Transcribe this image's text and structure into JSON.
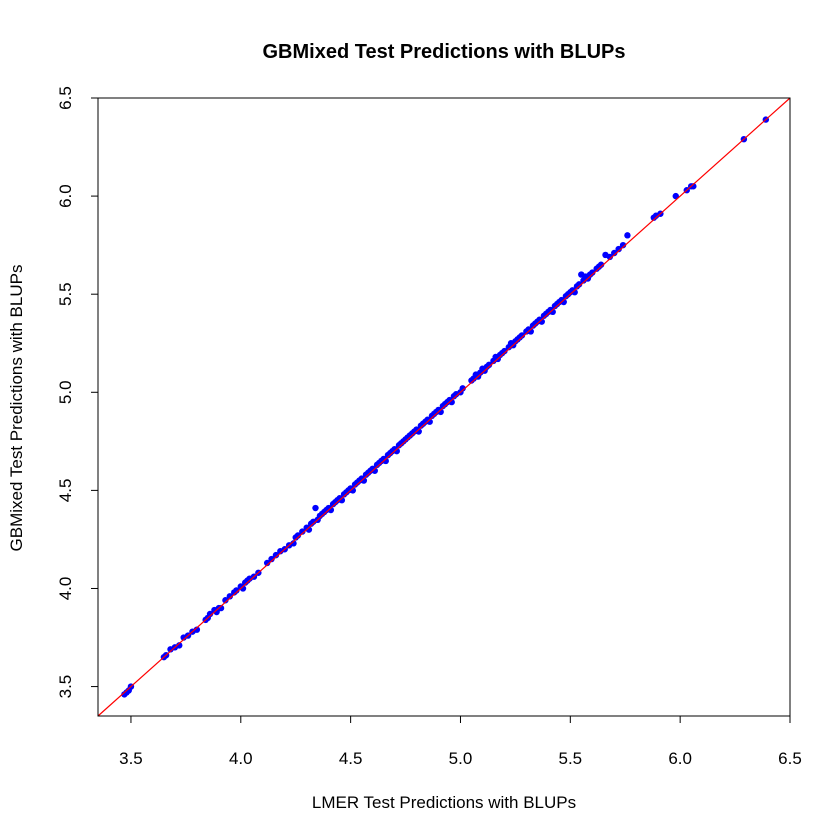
{
  "chart_data": {
    "type": "scatter",
    "title": "GBMixed Test Predictions with BLUPs",
    "xlabel": "LMER Test Predictions with BLUPs",
    "ylabel": "GBMixed Test Predictions with BLUPs",
    "xlim": [
      3.35,
      6.5
    ],
    "ylim": [
      3.35,
      6.5
    ],
    "xticks": [
      "3.5",
      "4.0",
      "4.5",
      "5.0",
      "5.5",
      "6.0",
      "6.5"
    ],
    "yticks": [
      "3.5",
      "4.0",
      "4.5",
      "5.0",
      "5.5",
      "6.0",
      "6.5"
    ],
    "grid": false,
    "point_color": "#0000ff",
    "reference_line": {
      "slope": 1,
      "intercept": 0,
      "color": "#ff0000"
    },
    "points": [
      [
        3.47,
        3.46
      ],
      [
        3.48,
        3.47
      ],
      [
        3.49,
        3.48
      ],
      [
        3.5,
        3.5
      ],
      [
        3.65,
        3.65
      ],
      [
        3.66,
        3.66
      ],
      [
        3.68,
        3.69
      ],
      [
        3.7,
        3.7
      ],
      [
        3.72,
        3.71
      ],
      [
        3.74,
        3.75
      ],
      [
        3.76,
        3.76
      ],
      [
        3.78,
        3.78
      ],
      [
        3.8,
        3.79
      ],
      [
        3.84,
        3.84
      ],
      [
        3.85,
        3.85
      ],
      [
        3.86,
        3.87
      ],
      [
        3.88,
        3.89
      ],
      [
        3.89,
        3.88
      ],
      [
        3.9,
        3.9
      ],
      [
        3.91,
        3.9
      ],
      [
        3.93,
        3.94
      ],
      [
        3.95,
        3.96
      ],
      [
        3.97,
        3.98
      ],
      [
        3.98,
        3.99
      ],
      [
        4.0,
        4.01
      ],
      [
        4.01,
        4.0
      ],
      [
        4.02,
        4.03
      ],
      [
        4.03,
        4.04
      ],
      [
        4.04,
        4.05
      ],
      [
        4.06,
        4.06
      ],
      [
        4.08,
        4.08
      ],
      [
        4.12,
        4.13
      ],
      [
        4.14,
        4.15
      ],
      [
        4.16,
        4.17
      ],
      [
        4.18,
        4.19
      ],
      [
        4.2,
        4.2
      ],
      [
        4.22,
        4.22
      ],
      [
        4.24,
        4.23
      ],
      [
        4.25,
        4.26
      ],
      [
        4.26,
        4.27
      ],
      [
        4.28,
        4.29
      ],
      [
        4.3,
        4.31
      ],
      [
        4.31,
        4.3
      ],
      [
        4.32,
        4.33
      ],
      [
        4.33,
        4.34
      ],
      [
        4.34,
        4.41
      ],
      [
        4.35,
        4.35
      ],
      [
        4.36,
        4.37
      ],
      [
        4.37,
        4.38
      ],
      [
        4.38,
        4.39
      ],
      [
        4.39,
        4.4
      ],
      [
        4.4,
        4.41
      ],
      [
        4.41,
        4.4
      ],
      [
        4.42,
        4.43
      ],
      [
        4.43,
        4.44
      ],
      [
        4.44,
        4.45
      ],
      [
        4.45,
        4.46
      ],
      [
        4.46,
        4.45
      ],
      [
        4.47,
        4.48
      ],
      [
        4.48,
        4.49
      ],
      [
        4.49,
        4.5
      ],
      [
        4.5,
        4.51
      ],
      [
        4.51,
        4.5
      ],
      [
        4.52,
        4.53
      ],
      [
        4.53,
        4.54
      ],
      [
        4.54,
        4.55
      ],
      [
        4.55,
        4.56
      ],
      [
        4.56,
        4.55
      ],
      [
        4.57,
        4.58
      ],
      [
        4.58,
        4.59
      ],
      [
        4.59,
        4.6
      ],
      [
        4.6,
        4.61
      ],
      [
        4.61,
        4.6
      ],
      [
        4.62,
        4.63
      ],
      [
        4.63,
        4.64
      ],
      [
        4.64,
        4.65
      ],
      [
        4.65,
        4.66
      ],
      [
        4.66,
        4.65
      ],
      [
        4.67,
        4.68
      ],
      [
        4.68,
        4.69
      ],
      [
        4.69,
        4.7
      ],
      [
        4.7,
        4.71
      ],
      [
        4.71,
        4.7
      ],
      [
        4.72,
        4.73
      ],
      [
        4.73,
        4.74
      ],
      [
        4.74,
        4.75
      ],
      [
        4.75,
        4.76
      ],
      [
        4.76,
        4.77
      ],
      [
        4.77,
        4.78
      ],
      [
        4.78,
        4.79
      ],
      [
        4.79,
        4.8
      ],
      [
        4.8,
        4.81
      ],
      [
        4.81,
        4.8
      ],
      [
        4.82,
        4.83
      ],
      [
        4.83,
        4.84
      ],
      [
        4.84,
        4.85
      ],
      [
        4.85,
        4.86
      ],
      [
        4.86,
        4.85
      ],
      [
        4.87,
        4.88
      ],
      [
        4.88,
        4.89
      ],
      [
        4.89,
        4.9
      ],
      [
        4.9,
        4.91
      ],
      [
        4.91,
        4.9
      ],
      [
        4.92,
        4.93
      ],
      [
        4.93,
        4.94
      ],
      [
        4.94,
        4.95
      ],
      [
        4.95,
        4.96
      ],
      [
        4.96,
        4.95
      ],
      [
        4.97,
        4.98
      ],
      [
        4.98,
        4.99
      ],
      [
        5.0,
        5.0
      ],
      [
        5.01,
        5.02
      ],
      [
        5.05,
        5.06
      ],
      [
        5.06,
        5.07
      ],
      [
        5.07,
        5.09
      ],
      [
        5.08,
        5.08
      ],
      [
        5.09,
        5.1
      ],
      [
        5.1,
        5.12
      ],
      [
        5.11,
        5.11
      ],
      [
        5.12,
        5.13
      ],
      [
        5.13,
        5.14
      ],
      [
        5.15,
        5.16
      ],
      [
        5.16,
        5.18
      ],
      [
        5.17,
        5.17
      ],
      [
        5.18,
        5.19
      ],
      [
        5.19,
        5.2
      ],
      [
        5.2,
        5.21
      ],
      [
        5.22,
        5.23
      ],
      [
        5.23,
        5.25
      ],
      [
        5.24,
        5.24
      ],
      [
        5.25,
        5.26
      ],
      [
        5.26,
        5.27
      ],
      [
        5.27,
        5.28
      ],
      [
        5.28,
        5.29
      ],
      [
        5.3,
        5.31
      ],
      [
        5.31,
        5.32
      ],
      [
        5.32,
        5.31
      ],
      [
        5.33,
        5.34
      ],
      [
        5.34,
        5.35
      ],
      [
        5.35,
        5.36
      ],
      [
        5.36,
        5.37
      ],
      [
        5.37,
        5.36
      ],
      [
        5.38,
        5.39
      ],
      [
        5.39,
        5.4
      ],
      [
        5.4,
        5.41
      ],
      [
        5.41,
        5.42
      ],
      [
        5.42,
        5.41
      ],
      [
        5.43,
        5.44
      ],
      [
        5.44,
        5.45
      ],
      [
        5.45,
        5.46
      ],
      [
        5.46,
        5.47
      ],
      [
        5.47,
        5.46
      ],
      [
        5.48,
        5.49
      ],
      [
        5.49,
        5.5
      ],
      [
        5.5,
        5.51
      ],
      [
        5.51,
        5.52
      ],
      [
        5.52,
        5.51
      ],
      [
        5.53,
        5.54
      ],
      [
        5.54,
        5.55
      ],
      [
        5.55,
        5.6
      ],
      [
        5.56,
        5.57
      ],
      [
        5.57,
        5.59
      ],
      [
        5.58,
        5.58
      ],
      [
        5.59,
        5.6
      ],
      [
        5.6,
        5.61
      ],
      [
        5.62,
        5.63
      ],
      [
        5.63,
        5.64
      ],
      [
        5.64,
        5.65
      ],
      [
        5.66,
        5.7
      ],
      [
        5.68,
        5.69
      ],
      [
        5.7,
        5.71
      ],
      [
        5.72,
        5.73
      ],
      [
        5.74,
        5.75
      ],
      [
        5.76,
        5.8
      ],
      [
        5.88,
        5.89
      ],
      [
        5.89,
        5.9
      ],
      [
        5.91,
        5.91
      ],
      [
        5.98,
        6.0
      ],
      [
        6.03,
        6.03
      ],
      [
        6.05,
        6.05
      ],
      [
        6.06,
        6.05
      ],
      [
        6.29,
        6.29
      ],
      [
        6.39,
        6.39
      ]
    ]
  }
}
